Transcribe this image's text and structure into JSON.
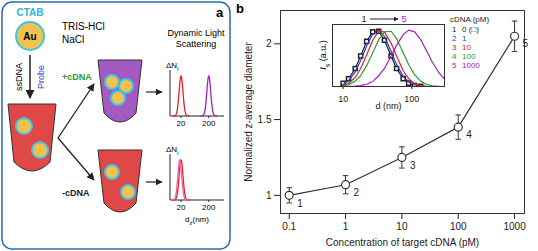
{
  "panel_a": {
    "label": "a",
    "shell": "CTAB",
    "core": "Au",
    "buffer": [
      "TRIS-HCl",
      "NaCl"
    ],
    "step": {
      "left": "ssDNA",
      "right": "Probe"
    },
    "branches": [
      {
        "label": "+cDNA",
        "color": "#2a9a2a",
        "tube_color": "#a35ac0"
      },
      {
        "label": "-cDNA",
        "color": "#222222",
        "tube_color": "#e04848"
      }
    ],
    "method": [
      "Dynamic Light",
      "Scattering"
    ],
    "dls": {
      "ylabel": {
        "text": "ΔN",
        "sub": "i"
      },
      "xlabel": {
        "text": "d",
        "sub": "z",
        "after": "(nm)"
      },
      "xlim": [
        8,
        600
      ],
      "xticks": [
        20,
        200
      ],
      "plots": [
        {
          "peaks": [
            {
              "d": 20,
              "color": "#e0202a"
            },
            {
              "d": 200,
              "color": "#a020c0"
            }
          ]
        },
        {
          "peaks": [
            {
              "d": 20,
              "color": "#e0202a"
            },
            {
              "d": 18,
              "color": "#ff5fa0"
            }
          ]
        }
      ]
    }
  },
  "chart_data": [
    {
      "type": "line",
      "panel": "b",
      "xlabel": "Concentration of target cDNA (pM)",
      "ylabel": "Normalized z-average diameter",
      "x": [
        0.1,
        1,
        10,
        100,
        1000
      ],
      "values": [
        1.0,
        1.07,
        1.25,
        1.45,
        2.05
      ],
      "errors": [
        0.05,
        0.06,
        0.07,
        0.08,
        0.1
      ],
      "point_labels": [
        "1",
        "2",
        "3",
        "4",
        "5"
      ],
      "log": "x",
      "xlim": [
        0.07,
        1500
      ],
      "xticks": [
        0.1,
        1,
        10,
        100,
        1000
      ],
      "ylim": [
        0.88,
        2.22
      ],
      "yticks": [
        1,
        1.5,
        2
      ],
      "color": "#333333",
      "marker": "circle",
      "line_style": "solid"
    },
    {
      "type": "line",
      "xlabel": "d (nm)",
      "ylabel": {
        "text": "I",
        "sub": "s",
        "after": " (a.u.)"
      },
      "legend_title": "cDNA (pM)",
      "legend": "top-right",
      "annotation": {
        "from": "1",
        "to": "5"
      },
      "log": "x",
      "tick_labels": "x",
      "xlim": [
        7,
        300
      ],
      "xticks": [
        10,
        100
      ],
      "ylim": [
        0,
        1.1
      ],
      "x": [
        10,
        12,
        15,
        18,
        22,
        27,
        33,
        40,
        50,
        60,
        75,
        90,
        110,
        135,
        165,
        200,
        250,
        300
      ],
      "series": [
        {
          "id": "1",
          "name": "0 (□)",
          "color": "#222222",
          "marker": "square",
          "values": [
            0.058,
            0.138,
            0.32,
            0.54,
            0.8,
            0.97,
            0.98,
            0.82,
            0.54,
            0.32,
            0.14,
            0.06,
            0.019,
            0.005,
            null,
            null,
            null,
            null
          ]
        },
        {
          "id": "2",
          "name": "1",
          "color": "#1f3fd6",
          "values": [
            0.041,
            0.103,
            0.26,
            0.46,
            0.72,
            0.93,
            1.0,
            0.89,
            0.62,
            0.39,
            0.18,
            0.08,
            0.03,
            0.008,
            0,
            0,
            0,
            0
          ]
        },
        {
          "id": "3",
          "name": "10",
          "color": "#e0202a",
          "values": [
            0.021,
            0.058,
            0.16,
            0.32,
            0.56,
            0.82,
            0.98,
            0.97,
            0.77,
            0.54,
            0.28,
            0.14,
            0.05,
            0.016,
            0.004,
            0,
            0,
            0
          ]
        },
        {
          "id": "4",
          "name": "100",
          "color": "#2aa02a",
          "values": [
            0.012,
            0.033,
            0.095,
            0.19,
            0.37,
            0.6,
            0.83,
            0.97,
            0.98,
            0.85,
            0.6,
            0.39,
            0.21,
            0.095,
            0.037,
            0.013,
            0.003,
            0
          ]
        },
        {
          "id": "5",
          "name": "1000",
          "color": "#a020c0",
          "values": [
            0,
            0.002,
            0.006,
            0.015,
            0.04,
            0.09,
            0.19,
            0.32,
            0.54,
            0.73,
            0.92,
            1.0,
            0.97,
            0.83,
            0.63,
            0.43,
            0.24,
            0.135
          ]
        }
      ]
    }
  ]
}
